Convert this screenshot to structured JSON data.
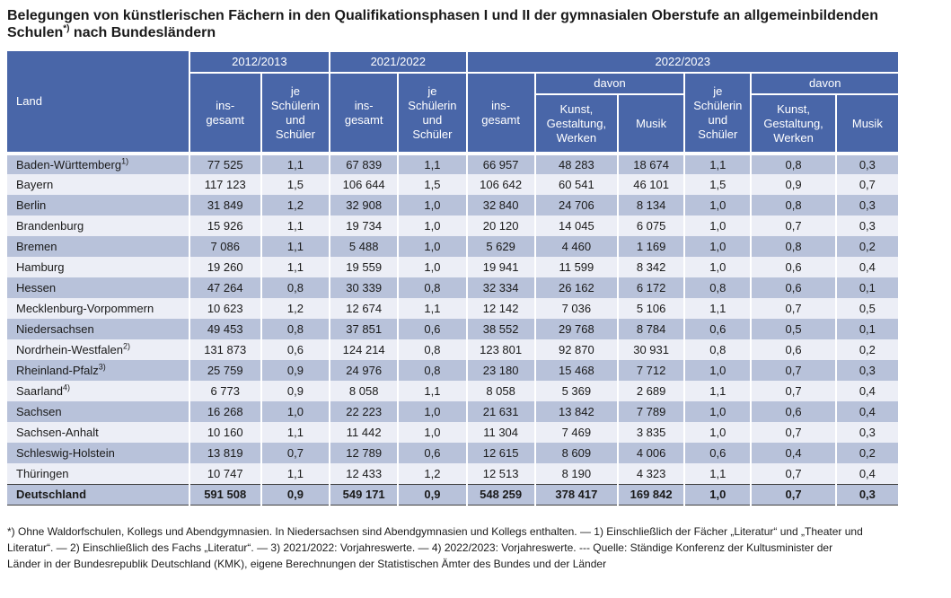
{
  "title": {
    "part1": "Belegungen von künstlerischen Fächern in den Qualifikationsphasen I und II der gymnasialen Oberstufe an allgemeinbildenden Schulen",
    "sup": "*)",
    "part2": " nach Bundesländern"
  },
  "colors": {
    "header_bg": "#4966a8",
    "row_dark": "#b8c2da",
    "row_light": "#eceef6",
    "cell_separator": "#ffffff",
    "total_rule": "#404040"
  },
  "table": {
    "corner_label": "Land",
    "year_groups": [
      "2012/2013",
      "2021/2022",
      "2022/2023"
    ],
    "headers": {
      "insgesamt": "ins-\ngesamt",
      "je_schueler": "je\nSchülerin\nund\nSchüler",
      "davon": "davon",
      "kunst": "Kunst,\nGestaltung,\nWerken",
      "musik": "Musik"
    },
    "rows": [
      {
        "land": "Baden-Württemberg",
        "sup": "1)",
        "values": [
          "77 525",
          "1,1",
          "67 839",
          "1,1",
          "66 957",
          "48 283",
          "18 674",
          "1,1",
          "0,8",
          "0,3"
        ]
      },
      {
        "land": "Bayern",
        "sup": "",
        "values": [
          "117 123",
          "1,5",
          "106 644",
          "1,5",
          "106 642",
          "60 541",
          "46 101",
          "1,5",
          "0,9",
          "0,7"
        ]
      },
      {
        "land": "Berlin",
        "sup": "",
        "values": [
          "31 849",
          "1,2",
          "32 908",
          "1,0",
          "32 840",
          "24 706",
          "8 134",
          "1,0",
          "0,8",
          "0,3"
        ]
      },
      {
        "land": "Brandenburg",
        "sup": "",
        "values": [
          "15 926",
          "1,1",
          "19 734",
          "1,0",
          "20 120",
          "14 045",
          "6 075",
          "1,0",
          "0,7",
          "0,3"
        ]
      },
      {
        "land": "Bremen",
        "sup": "",
        "values": [
          "7 086",
          "1,1",
          "5 488",
          "1,0",
          "5 629",
          "4 460",
          "1 169",
          "1,0",
          "0,8",
          "0,2"
        ]
      },
      {
        "land": "Hamburg",
        "sup": "",
        "values": [
          "19 260",
          "1,1",
          "19 559",
          "1,0",
          "19 941",
          "11 599",
          "8 342",
          "1,0",
          "0,6",
          "0,4"
        ]
      },
      {
        "land": "Hessen",
        "sup": "",
        "values": [
          "47 264",
          "0,8",
          "30 339",
          "0,8",
          "32 334",
          "26 162",
          "6 172",
          "0,8",
          "0,6",
          "0,1"
        ]
      },
      {
        "land": "Mecklenburg-Vorpommern",
        "sup": "",
        "values": [
          "10 623",
          "1,2",
          "12 674",
          "1,1",
          "12 142",
          "7 036",
          "5 106",
          "1,1",
          "0,7",
          "0,5"
        ]
      },
      {
        "land": "Niedersachsen",
        "sup": "",
        "values": [
          "49 453",
          "0,8",
          "37 851",
          "0,6",
          "38 552",
          "29 768",
          "8 784",
          "0,6",
          "0,5",
          "0,1"
        ]
      },
      {
        "land": "Nordrhein-Westfalen",
        "sup": "2)",
        "values": [
          "131 873",
          "0,6",
          "124 214",
          "0,8",
          "123 801",
          "92 870",
          "30 931",
          "0,8",
          "0,6",
          "0,2"
        ]
      },
      {
        "land": "Rheinland-Pfalz",
        "sup": "3)",
        "values": [
          "25 759",
          "0,9",
          "24 976",
          "0,8",
          "23 180",
          "15 468",
          "7 712",
          "1,0",
          "0,7",
          "0,3"
        ]
      },
      {
        "land": "Saarland",
        "sup": "4)",
        "values": [
          "6 773",
          "0,9",
          "8 058",
          "1,1",
          "8 058",
          "5 369",
          "2 689",
          "1,1",
          "0,7",
          "0,4"
        ]
      },
      {
        "land": "Sachsen",
        "sup": "",
        "values": [
          "16 268",
          "1,0",
          "22 223",
          "1,0",
          "21 631",
          "13 842",
          "7 789",
          "1,0",
          "0,6",
          "0,4"
        ]
      },
      {
        "land": "Sachsen-Anhalt",
        "sup": "",
        "values": [
          "10 160",
          "1,1",
          "11 442",
          "1,0",
          "11 304",
          "7 469",
          "3 835",
          "1,0",
          "0,7",
          "0,3"
        ]
      },
      {
        "land": "Schleswig-Holstein",
        "sup": "",
        "values": [
          "13 819",
          "0,7",
          "12 789",
          "0,6",
          "12 615",
          "8 609",
          "4 006",
          "0,6",
          "0,4",
          "0,2"
        ]
      },
      {
        "land": "Thüringen",
        "sup": "",
        "values": [
          "10 747",
          "1,1",
          "12 433",
          "1,2",
          "12 513",
          "8 190",
          "4 323",
          "1,1",
          "0,7",
          "0,4"
        ]
      }
    ],
    "total_row": {
      "land": "Deutschland",
      "sup": "",
      "values": [
        "591 508",
        "0,9",
        "549 171",
        "0,9",
        "548 259",
        "378 417",
        "169 842",
        "1,0",
        "0,7",
        "0,3"
      ]
    }
  },
  "footnote": "*) Ohne Waldorfschulen, Kollegs und Abendgymnasien. In Niedersachsen sind Abendgymnasien und Kollegs enthalten. — 1) Einschließlich der Fächer „Literatur“ und „Theater und Literatur“. — 2) Einschließlich des Fachs „Literatur“. — 3) 2021/2022: Vorjahreswerte. — 4) 2022/2023: Vorjahreswerte. --- Quelle: Ständige Konferenz der Kultusminister der Länder in der Bundesrepublik Deutschland (KMK), eigene Berechnungen der Statistischen Ämter des Bundes und der Länder"
}
